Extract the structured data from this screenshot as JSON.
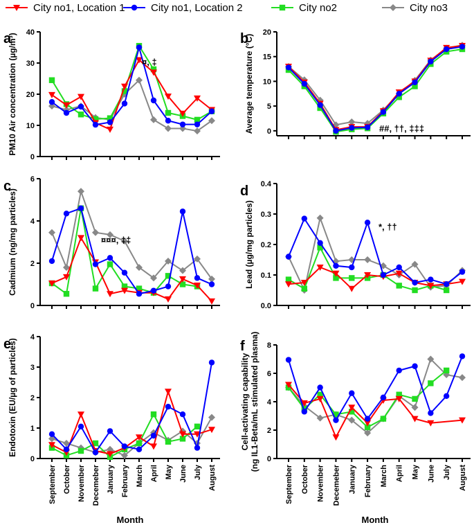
{
  "legend": [
    {
      "name": "City no1, Location 1",
      "color": "#ff0000",
      "marker": "triangle-down"
    },
    {
      "name": "City no1, Location 2",
      "color": "#0000ff",
      "marker": "circle"
    },
    {
      "name": "City no2",
      "color": "#22dd22",
      "marker": "square"
    },
    {
      "name": "City no3",
      "color": "#888888",
      "marker": "diamond"
    }
  ],
  "months": [
    "September",
    "October",
    "November",
    "Decemeber",
    "January",
    "February",
    "March",
    "April",
    "May",
    "June",
    "July",
    "August"
  ],
  "xlabel": "Month",
  "chart_data": [
    {
      "type": "line",
      "panel": "a",
      "ylabel": "PM10 Air concentration (µg/m³)",
      "ylim": [
        0,
        40
      ],
      "yticks": [
        0,
        10,
        20,
        30,
        40
      ],
      "annotation": "¤, ‡",
      "series": [
        {
          "name": "City no1, Location 1",
          "values": [
            19.8,
            16.5,
            19.2,
            10.8,
            8.7,
            22.5,
            31.0,
            27.0,
            19.3,
            13.8,
            18.7,
            15.0
          ]
        },
        {
          "name": "City no1, Location 2",
          "values": [
            17.5,
            14.0,
            16.0,
            10.2,
            11.0,
            17.0,
            35.0,
            18.0,
            11.5,
            10.3,
            10.3,
            14.5
          ]
        },
        {
          "name": "City no2",
          "values": [
            24.5,
            16.8,
            13.5,
            12.0,
            12.3,
            21.0,
            35.5,
            28.0,
            14.0,
            13.0,
            11.8,
            14.5
          ]
        },
        {
          "name": "City no3",
          "values": [
            16.2,
            15.0,
            16.2,
            12.5,
            11.8,
            20.0,
            24.5,
            11.8,
            9.0,
            9.0,
            8.2,
            11.5
          ]
        }
      ]
    },
    {
      "type": "line",
      "panel": "b",
      "ylabel": "Average temperature (°C)",
      "ylim": [
        -1,
        20
      ],
      "yticks": [
        0,
        5,
        10,
        15,
        20
      ],
      "annotation": "##, ††, ‡‡‡",
      "series": [
        {
          "name": "City no1, Location 1",
          "values": [
            13.0,
            9.8,
            5.5,
            0.2,
            0.8,
            0.8,
            4.0,
            7.8,
            10.0,
            14.2,
            16.8,
            17.2
          ]
        },
        {
          "name": "City no1, Location 2",
          "values": [
            12.8,
            9.5,
            5.2,
            0.0,
            0.6,
            0.7,
            3.8,
            7.5,
            9.8,
            14.0,
            16.5,
            17.0
          ]
        },
        {
          "name": "City no2",
          "values": [
            12.3,
            9.0,
            4.6,
            -0.2,
            0.3,
            0.5,
            3.5,
            6.8,
            9.0,
            13.5,
            16.0,
            16.5
          ]
        },
        {
          "name": "City no3",
          "values": [
            13.0,
            10.3,
            6.2,
            1.2,
            1.8,
            1.5,
            4.2,
            7.5,
            10.2,
            14.3,
            16.7,
            17.3
          ]
        }
      ]
    },
    {
      "type": "line",
      "panel": "c",
      "ylabel": "Cadmium (ng/mg particles)",
      "ylim": [
        0,
        6
      ],
      "yticks": [
        0,
        2,
        4,
        6
      ],
      "annotation": "¤¤¤, ‡‡",
      "series": [
        {
          "name": "City no1, Location 1",
          "values": [
            1.05,
            1.35,
            3.2,
            2.05,
            0.55,
            0.7,
            0.6,
            0.6,
            0.3,
            1.25,
            0.95,
            0.2
          ]
        },
        {
          "name": "City no1, Location 2",
          "values": [
            2.1,
            4.35,
            4.6,
            1.95,
            2.25,
            1.55,
            0.55,
            0.7,
            0.9,
            4.45,
            1.3,
            1.0
          ]
        },
        {
          "name": "City no2",
          "values": [
            1.05,
            0.55,
            4.6,
            0.8,
            1.95,
            0.9,
            0.8,
            0.6,
            1.4,
            1.0,
            0.9,
            null
          ]
        },
        {
          "name": "City no3",
          "values": [
            3.45,
            1.8,
            5.4,
            3.45,
            3.35,
            3.05,
            1.8,
            1.3,
            2.1,
            1.65,
            2.2,
            1.25
          ]
        }
      ]
    },
    {
      "type": "line",
      "panel": "d",
      "ylabel": "Lead (µg/mg particles)",
      "ylim": [
        0,
        0.4
      ],
      "yticks": [
        0,
        0.1,
        0.2,
        0.3,
        0.4
      ],
      "yticklabels": [
        "0.0",
        "0.1",
        "0.2",
        "0.3",
        "0.4"
      ],
      "annotation": "*, ††",
      "series": [
        {
          "name": "City no1, Location 1",
          "values": [
            0.07,
            0.075,
            0.125,
            0.105,
            0.055,
            0.1,
            0.095,
            0.105,
            0.075,
            0.065,
            0.07,
            0.078
          ]
        },
        {
          "name": "City no1, Location 2",
          "values": [
            0.16,
            0.285,
            0.205,
            0.13,
            0.125,
            0.272,
            0.1,
            0.125,
            0.075,
            0.085,
            0.07,
            0.11
          ]
        },
        {
          "name": "City no2",
          "values": [
            0.085,
            0.055,
            0.19,
            0.09,
            0.09,
            0.09,
            0.1,
            0.065,
            0.05,
            0.065,
            0.05,
            null
          ]
        },
        {
          "name": "City no3",
          "values": [
            0.16,
            0.05,
            0.287,
            0.145,
            0.15,
            0.15,
            0.13,
            0.1,
            0.135,
            0.06,
            0.065,
            0.115
          ]
        }
      ]
    },
    {
      "type": "line",
      "panel": "e",
      "ylabel": "Endotoxin  (EU/µg of particles)",
      "ylim": [
        0,
        4
      ],
      "yticks": [
        0,
        1,
        2,
        3,
        4
      ],
      "annotation": "",
      "series": [
        {
          "name": "City no1, Location 1",
          "values": [
            0.45,
            0.2,
            1.45,
            0.25,
            0.15,
            0.35,
            0.7,
            0.4,
            2.2,
            0.8,
            0.8,
            0.95
          ]
        },
        {
          "name": "City no1, Location 2",
          "values": [
            0.8,
            0.3,
            1.05,
            0.2,
            0.9,
            0.4,
            0.3,
            0.75,
            1.7,
            1.45,
            0.35,
            3.15
          ]
        },
        {
          "name": "City no2",
          "values": [
            0.35,
            0.1,
            0.25,
            0.5,
            0.05,
            0.3,
            0.5,
            1.45,
            0.55,
            0.65,
            1.05,
            null
          ]
        },
        {
          "name": "City no3",
          "values": [
            0.65,
            0.5,
            0.35,
            0.2,
            0.3,
            0.1,
            0.5,
            0.85,
            0.6,
            0.9,
            0.5,
            1.35
          ]
        }
      ]
    },
    {
      "type": "line",
      "panel": "f",
      "ylabel": "Cell-activating capability",
      "ylabel2": "(ng IL1-Beta/mL stimulated plasma)",
      "ylim": [
        0,
        8
      ],
      "yticks": [
        0,
        2,
        4,
        6,
        8
      ],
      "annotation": "",
      "series": [
        {
          "name": "City no1, Location 1",
          "values": [
            5.2,
            3.9,
            4.2,
            1.5,
            3.6,
            2.5,
            4.1,
            4.2,
            2.8,
            2.5,
            null,
            2.7
          ]
        },
        {
          "name": "City no1, Location 2",
          "values": [
            6.95,
            3.3,
            5.0,
            2.7,
            4.6,
            2.8,
            4.3,
            6.2,
            6.5,
            3.2,
            4.4,
            7.2
          ]
        },
        {
          "name": "City no2",
          "values": [
            5.0,
            3.5,
            4.5,
            3.1,
            3.3,
            2.2,
            2.8,
            4.5,
            4.2,
            5.3,
            6.2,
            null
          ]
        },
        {
          "name": "City no3",
          "values": [
            5.0,
            3.7,
            2.85,
            3.1,
            2.7,
            1.8,
            2.8,
            4.4,
            3.6,
            7.0,
            5.9,
            5.7
          ]
        }
      ]
    }
  ]
}
